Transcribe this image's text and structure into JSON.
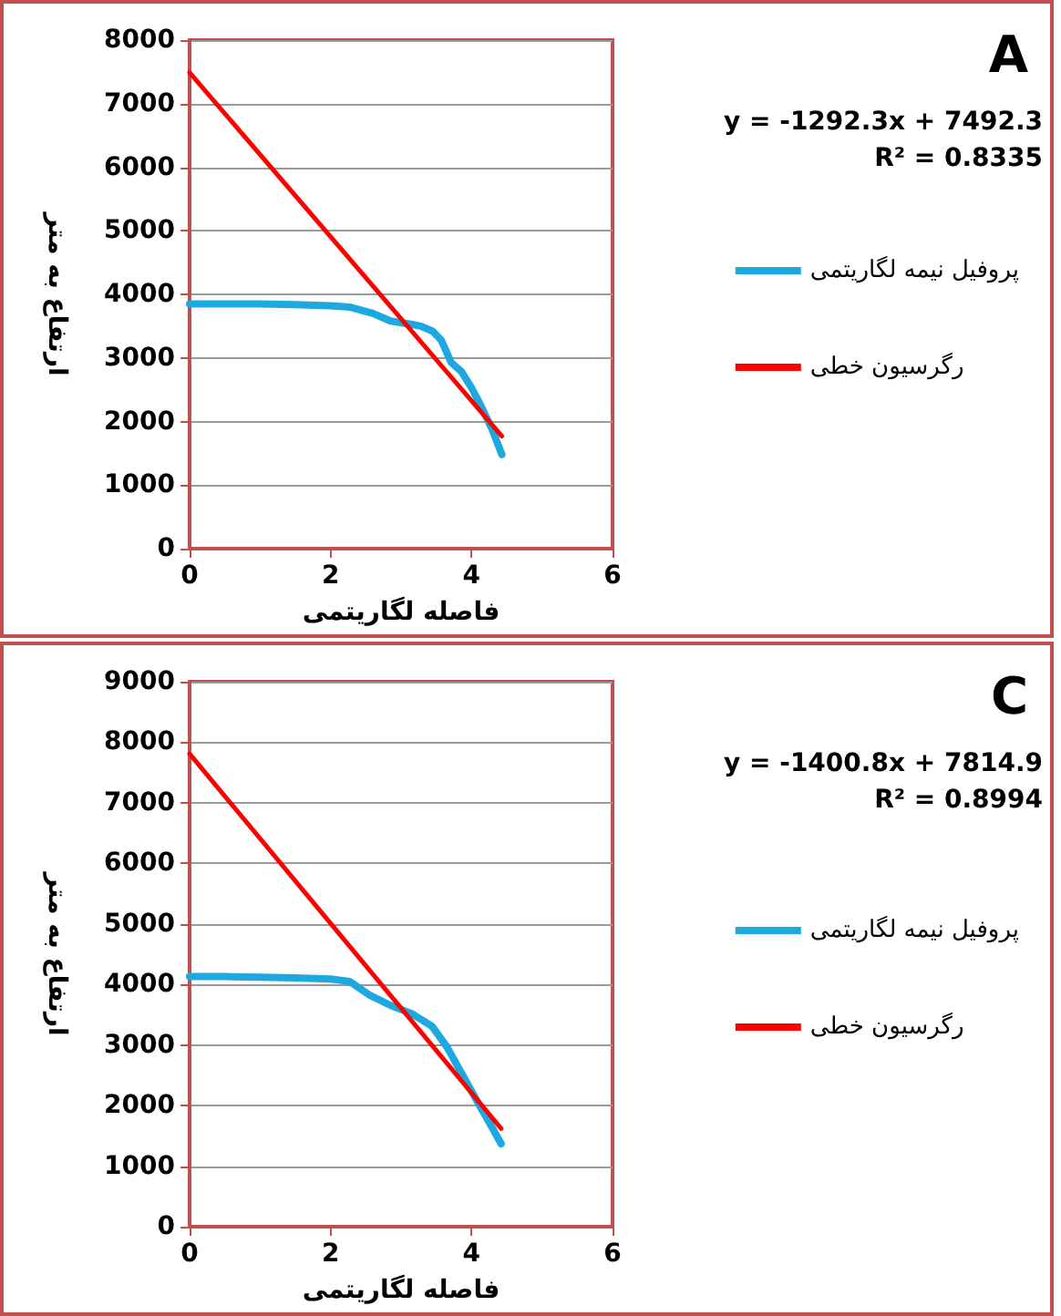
{
  "chart_data": [
    {
      "type": "line",
      "xlabel": "فاصله لگاریتمی",
      "ylabel": "ارتفاع به متر",
      "annotations": [
        "A",
        "y = -1292.3x + 7492.3",
        "R² = 0.8335"
      ],
      "xlim": [
        0,
        6
      ],
      "xticks": [
        0,
        2,
        4,
        6
      ],
      "ylim": [
        0,
        8000
      ],
      "yticks": [
        0,
        1000,
        2000,
        3000,
        4000,
        5000,
        6000,
        7000,
        8000
      ],
      "grid": "y",
      "legend": "right",
      "marker": "none",
      "series": [
        {
          "name": "پروفیل نیمه لگاریتمی",
          "color": "#1ea8e0",
          "x": [
            0,
            0.5,
            1,
            1.5,
            2,
            2.27,
            2.6,
            2.85,
            3.14,
            3.28,
            3.45,
            3.57,
            3.71,
            3.86,
            4,
            4.14,
            4.29,
            4.43
          ],
          "values": [
            3850,
            3850,
            3850,
            3840,
            3820,
            3800,
            3700,
            3580,
            3530,
            3500,
            3420,
            3280,
            2930,
            2780,
            2530,
            2230,
            1880,
            1480
          ]
        },
        {
          "name": "رگرسیون خطی",
          "color": "#ff0000",
          "x": [
            0,
            4.43
          ],
          "values": [
            7490,
            1770
          ]
        }
      ]
    },
    {
      "type": "line",
      "xlabel": "فاصله لگاریتمی",
      "ylabel": "ارتفاع به متر",
      "annotations": [
        "C",
        "y = -1400.8x + 7814.9",
        "R² = 0.8994"
      ],
      "xlim": [
        0,
        6
      ],
      "xticks": [
        0,
        2,
        4,
        6
      ],
      "ylim": [
        0,
        9000
      ],
      "yticks": [
        0,
        1000,
        2000,
        3000,
        4000,
        5000,
        6000,
        7000,
        8000,
        9000
      ],
      "grid": "y",
      "legend": "right",
      "marker": "none",
      "series": [
        {
          "name": "پروفیل نیمه لگاریتمی",
          "color": "#1ea8e0",
          "x": [
            0,
            0.5,
            1,
            1.5,
            2,
            2.27,
            2.56,
            2.86,
            3.15,
            3.44,
            3.65,
            3.87,
            4.09,
            4.31,
            4.42
          ],
          "values": [
            4130,
            4130,
            4120,
            4110,
            4090,
            4050,
            3820,
            3650,
            3520,
            3310,
            2970,
            2510,
            2050,
            1600,
            1370
          ]
        },
        {
          "name": "رگرسیون خطی",
          "color": "#ff0000",
          "x": [
            0,
            4.42
          ],
          "values": [
            7810,
            1620
          ]
        }
      ]
    }
  ]
}
